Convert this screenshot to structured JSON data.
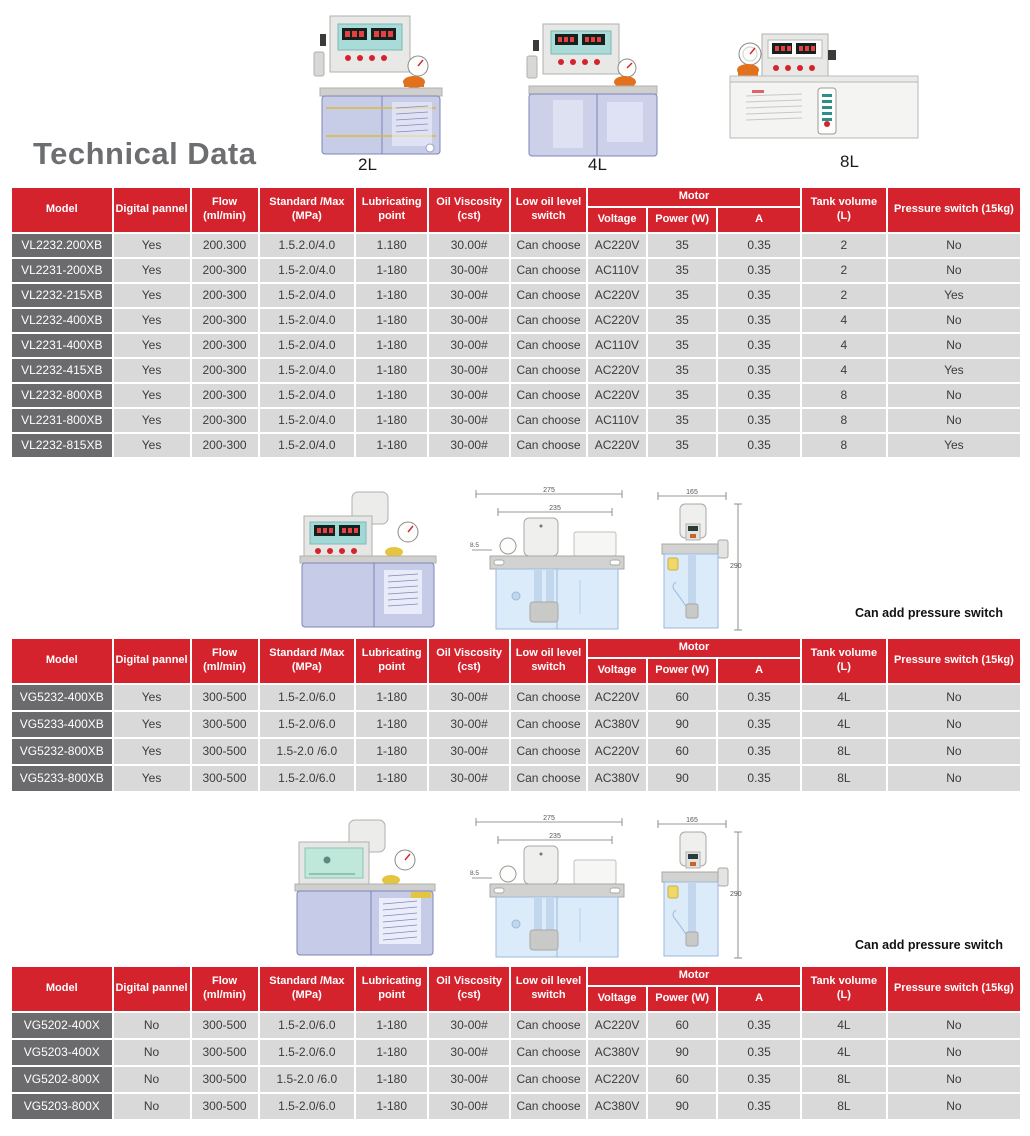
{
  "title": "Technical Data",
  "product_labels": {
    "small": "2L",
    "medium": "4L",
    "large": "8L"
  },
  "notes": {
    "pressure_note_1": "Can add pressure switch",
    "pressure_note_2": "Can add pressure switch"
  },
  "dimensions": {
    "outer_width": "275",
    "inner_width": "235",
    "hole": "8.5",
    "side_width": "165",
    "height": "290"
  },
  "colors": {
    "header_red": "#d5232e",
    "model_gray": "#6b6b6d",
    "cell_gray": "#d9d9d9",
    "title_gray": "#6d6e71"
  },
  "tables": [
    {
      "header": {
        "model": "Model",
        "digital": "Digital pannel",
        "flow": "Flow (ml/min)",
        "standard": "Standard /Max (MPa)",
        "lubricating": "Lubricating point",
        "viscosity": "Oil Viscosity (cst)",
        "low_oil": "Low oil level switch",
        "motor": "Motor",
        "voltage": "Voltage",
        "power": "Power (W)",
        "amp": "A",
        "tank": "Tank volume (L)",
        "pressure": "Pressure switch (15kg)"
      },
      "rows": [
        [
          "VL2232.200XB",
          "Yes",
          "200.300",
          "1.5.2.0/4.0",
          "1.180",
          "30.00#",
          "Can choose",
          "AC220V",
          "35",
          "0.35",
          "2",
          "No"
        ],
        [
          "VL2231-200XB",
          "Yes",
          "200-300",
          "1.5-2.0/4.0",
          "1-180",
          "30-00#",
          "Can choose",
          "AC110V",
          "35",
          "0.35",
          "2",
          "No"
        ],
        [
          "VL2232-215XB",
          "Yes",
          "200-300",
          "1.5-2.0/4.0",
          "1-180",
          "30-00#",
          "Can choose",
          "AC220V",
          "35",
          "0.35",
          "2",
          "Yes"
        ],
        [
          "VL2232-400XB",
          "Yes",
          "200-300",
          "1.5-2.0/4.0",
          "1-180",
          "30-00#",
          "Can choose",
          "AC220V",
          "35",
          "0.35",
          "4",
          "No"
        ],
        [
          "VL2231-400XB",
          "Yes",
          "200-300",
          "1.5-2.0/4.0",
          "1-180",
          "30-00#",
          "Can choose",
          "AC110V",
          "35",
          "0.35",
          "4",
          "No"
        ],
        [
          "VL2232-415XB",
          "Yes",
          "200-300",
          "1.5-2.0/4.0",
          "1-180",
          "30-00#",
          "Can choose",
          "AC220V",
          "35",
          "0.35",
          "4",
          "Yes"
        ],
        [
          "VL2232-800XB",
          "Yes",
          "200-300",
          "1.5-2.0/4.0",
          "1-180",
          "30-00#",
          "Can choose",
          "AC220V",
          "35",
          "0.35",
          "8",
          "No"
        ],
        [
          "VL2231-800XB",
          "Yes",
          "200-300",
          "1.5-2.0/4.0",
          "1-180",
          "30-00#",
          "Can choose",
          "AC110V",
          "35",
          "0.35",
          "8",
          "No"
        ],
        [
          "VL2232-815XB",
          "Yes",
          "200-300",
          "1.5-2.0/4.0",
          "1-180",
          "30-00#",
          "Can choose",
          "AC220V",
          "35",
          "0.35",
          "8",
          "Yes"
        ]
      ]
    },
    {
      "header": {
        "model": "Model",
        "digital": "Digital pannel",
        "flow": "Flow (ml/min)",
        "standard": "Standard /Max (MPa)",
        "lubricating": "Lubricating point",
        "viscosity": "Oil Viscosity (cst)",
        "low_oil": "Low oil level switch",
        "motor": "Motor",
        "voltage": "Voltage",
        "power": "Power (W)",
        "amp": "A",
        "tank": "Tank volume (L)",
        "pressure": "Pressure switch (15kg)"
      },
      "rows": [
        [
          "VG5232-400XB",
          "Yes",
          "300-500",
          "1.5-2.0/6.0",
          "1-180",
          "30-00#",
          "Can choose",
          "AC220V",
          "60",
          "0.35",
          "4L",
          "No"
        ],
        [
          "VG5233-400XB",
          "Yes",
          "300-500",
          "1.5-2.0/6.0",
          "1-180",
          "30-00#",
          "Can choose",
          "AC380V",
          "90",
          "0.35",
          "4L",
          "No"
        ],
        [
          "VG5232-800XB",
          "Yes",
          "300-500",
          "1.5-2.0 /6.0",
          "1-180",
          "30-00#",
          "Can choose",
          "AC220V",
          "60",
          "0.35",
          "8L",
          "No"
        ],
        [
          "VG5233-800XB",
          "Yes",
          "300-500",
          "1.5-2.0/6.0",
          "1-180",
          "30-00#",
          "Can choose",
          "AC380V",
          "90",
          "0.35",
          "8L",
          "No"
        ]
      ]
    },
    {
      "header": {
        "model": "Model",
        "digital": "Digital pannel",
        "flow": "Flow (ml/min)",
        "standard": "Standard /Max (MPa)",
        "lubricating": "Lubricating point",
        "viscosity": "Oil Viscosity (cst)",
        "low_oil": "Low oil level switch",
        "motor": "Motor",
        "voltage": "Voltage",
        "power": "Power (W)",
        "amp": "A",
        "tank": "Tank volume (L)",
        "pressure": "Pressure switch (15kg)"
      },
      "rows": [
        [
          "VG5202-400X",
          "No",
          "300-500",
          "1.5-2.0/6.0",
          "1-180",
          "30-00#",
          "Can choose",
          "AC220V",
          "60",
          "0.35",
          "4L",
          "No"
        ],
        [
          "VG5203-400X",
          "No",
          "300-500",
          "1.5-2.0/6.0",
          "1-180",
          "30-00#",
          "Can choose",
          "AC380V",
          "90",
          "0.35",
          "4L",
          "No"
        ],
        [
          "VG5202-800X",
          "No",
          "300-500",
          "1.5-2.0 /6.0",
          "1-180",
          "30-00#",
          "Can choose",
          "AC220V",
          "60",
          "0.35",
          "8L",
          "No"
        ],
        [
          "VG5203-800X",
          "No",
          "300-500",
          "1.5-2.0/6.0",
          "1-180",
          "30-00#",
          "Can choose",
          "AC380V",
          "90",
          "0.35",
          "8L",
          "No"
        ]
      ]
    }
  ]
}
